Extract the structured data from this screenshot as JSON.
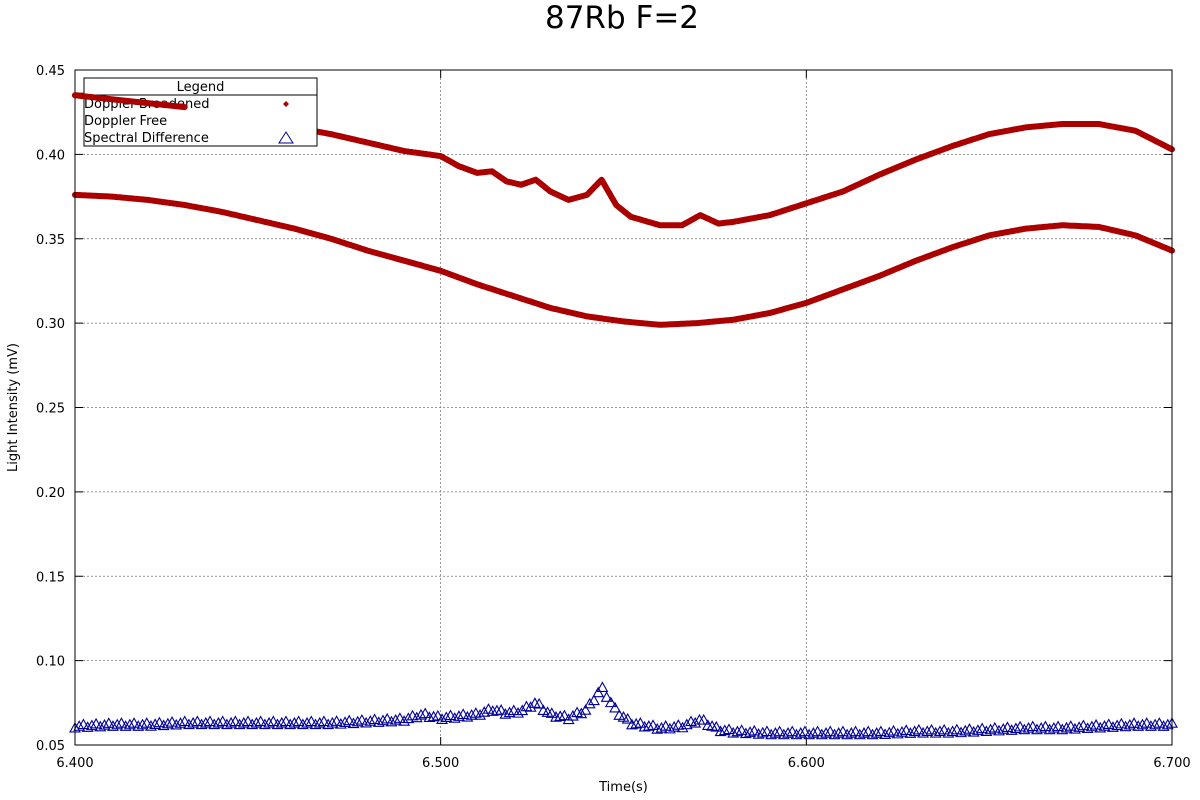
{
  "chart_data": {
    "type": "scatter",
    "title": "87Rb F=2",
    "xlabel": "Time(s)",
    "ylabel": "Light Intensity (mV)",
    "xlim": [
      6.4,
      6.7
    ],
    "ylim": [
      0.05,
      0.45
    ],
    "x_ticks": [
      6.4,
      6.5,
      6.6,
      6.7
    ],
    "x_tick_labels": [
      "6.400",
      "6.500",
      "6.600",
      "6.700"
    ],
    "y_ticks": [
      0.05,
      0.1,
      0.15,
      0.2,
      0.25,
      0.3,
      0.35,
      0.4,
      0.45
    ],
    "y_tick_labels": [
      "0.05",
      "0.10",
      "0.15",
      "0.20",
      "0.25",
      "0.30",
      "0.35",
      "0.40",
      "0.45"
    ],
    "grid": true,
    "legend": {
      "title": "Legend",
      "placement": "top-left",
      "entries": [
        "Doppler-Broadened",
        "Doppler Free",
        "Spectral Difference"
      ]
    },
    "series": [
      {
        "name": "Doppler-Broadened",
        "color": "#aa0000",
        "marker": "diamond",
        "x": [
          6.4,
          6.41,
          6.42,
          6.43,
          6.44,
          6.45,
          6.46,
          6.47,
          6.48,
          6.49,
          6.5,
          6.51,
          6.52,
          6.53,
          6.54,
          6.55,
          6.56,
          6.57,
          6.58,
          6.59,
          6.6,
          6.61,
          6.62,
          6.63,
          6.64,
          6.65,
          6.66,
          6.67,
          6.68,
          6.69,
          6.7
        ],
        "y": [
          0.376,
          0.375,
          0.373,
          0.37,
          0.366,
          0.361,
          0.356,
          0.35,
          0.343,
          0.337,
          0.331,
          0.323,
          0.316,
          0.309,
          0.304,
          0.301,
          0.299,
          0.3,
          0.302,
          0.306,
          0.312,
          0.32,
          0.328,
          0.337,
          0.345,
          0.352,
          0.356,
          0.358,
          0.357,
          0.352,
          0.343
        ]
      },
      {
        "name": "Doppler Free",
        "color": "#aa0000",
        "marker": "line",
        "x": [
          6.4,
          6.41,
          6.42,
          6.43,
          6.44,
          6.45,
          6.46,
          6.47,
          6.48,
          6.49,
          6.5,
          6.505,
          6.51,
          6.514,
          6.518,
          6.522,
          6.526,
          6.53,
          6.535,
          6.54,
          6.544,
          6.548,
          6.552,
          6.56,
          6.566,
          6.571,
          6.576,
          6.58,
          6.59,
          6.6,
          6.61,
          6.62,
          6.63,
          6.64,
          6.65,
          6.66,
          6.67,
          6.68,
          6.69,
          6.7
        ],
        "y": [
          0.435,
          0.434,
          0.431,
          0.428,
          0.425,
          0.421,
          0.416,
          0.412,
          0.407,
          0.402,
          0.399,
          0.393,
          0.389,
          0.39,
          0.384,
          0.382,
          0.385,
          0.378,
          0.373,
          0.376,
          0.385,
          0.37,
          0.363,
          0.358,
          0.358,
          0.364,
          0.359,
          0.36,
          0.364,
          0.371,
          0.378,
          0.388,
          0.397,
          0.405,
          0.412,
          0.416,
          0.418,
          0.418,
          0.414,
          0.403
        ]
      },
      {
        "name": "Spectral Difference",
        "color": "#000099",
        "marker": "triangle",
        "x": [
          6.4,
          6.41,
          6.42,
          6.43,
          6.44,
          6.45,
          6.46,
          6.47,
          6.48,
          6.49,
          6.495,
          6.5,
          6.505,
          6.51,
          6.514,
          6.518,
          6.522,
          6.526,
          6.53,
          6.535,
          6.54,
          6.544,
          6.548,
          6.552,
          6.56,
          6.566,
          6.571,
          6.576,
          6.58,
          6.59,
          6.6,
          6.61,
          6.62,
          6.63,
          6.64,
          6.65,
          6.66,
          6.67,
          6.68,
          6.69,
          6.7
        ],
        "y": [
          0.061,
          0.062,
          0.062,
          0.063,
          0.063,
          0.063,
          0.063,
          0.063,
          0.064,
          0.065,
          0.068,
          0.066,
          0.067,
          0.068,
          0.071,
          0.069,
          0.07,
          0.075,
          0.068,
          0.066,
          0.071,
          0.084,
          0.07,
          0.063,
          0.06,
          0.061,
          0.065,
          0.059,
          0.058,
          0.057,
          0.057,
          0.057,
          0.057,
          0.058,
          0.058,
          0.059,
          0.06,
          0.06,
          0.061,
          0.062,
          0.062
        ]
      }
    ]
  }
}
